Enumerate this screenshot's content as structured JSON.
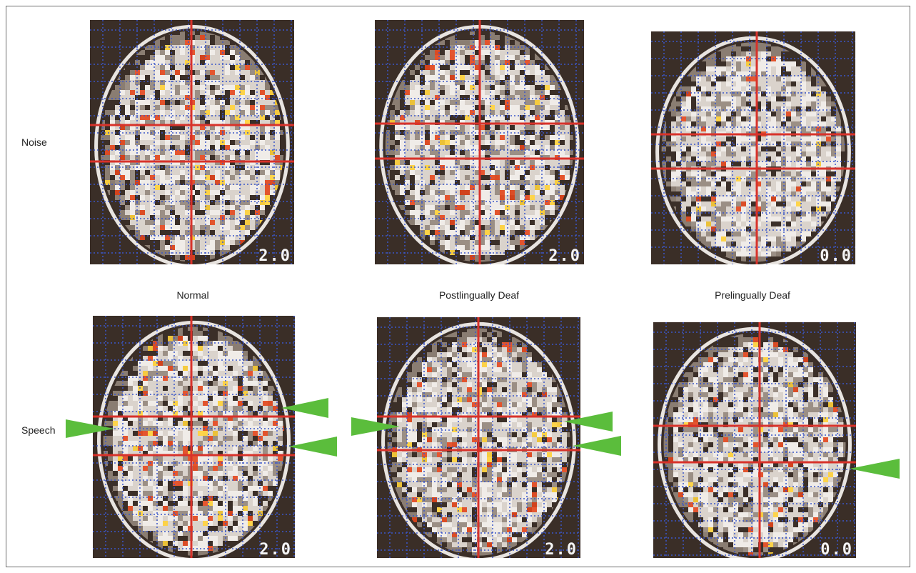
{
  "row_labels": {
    "noise": "Noise",
    "speech": "Speech"
  },
  "column_labels": {
    "normal": "Normal",
    "postlingual": "Postlingually Deaf",
    "prelingual": "Prelingually Deaf"
  },
  "scan_numbers": {
    "noise_normal": "2.0",
    "noise_postlingual": "2.0",
    "noise_prelingual": "0.0",
    "speech_normal": "2.0",
    "speech_postlingual": "2.0",
    "speech_prelingual": "0.0"
  },
  "colors": {
    "crosshair": "#d8322a",
    "grid_dots": "#3b56c8",
    "arrow": "#5bbd3c",
    "activation_hot": "#ffd23a",
    "activation": "#e2461c",
    "tissue_light": "#dad3cc",
    "tissue_dark": "#3b2f28"
  }
}
